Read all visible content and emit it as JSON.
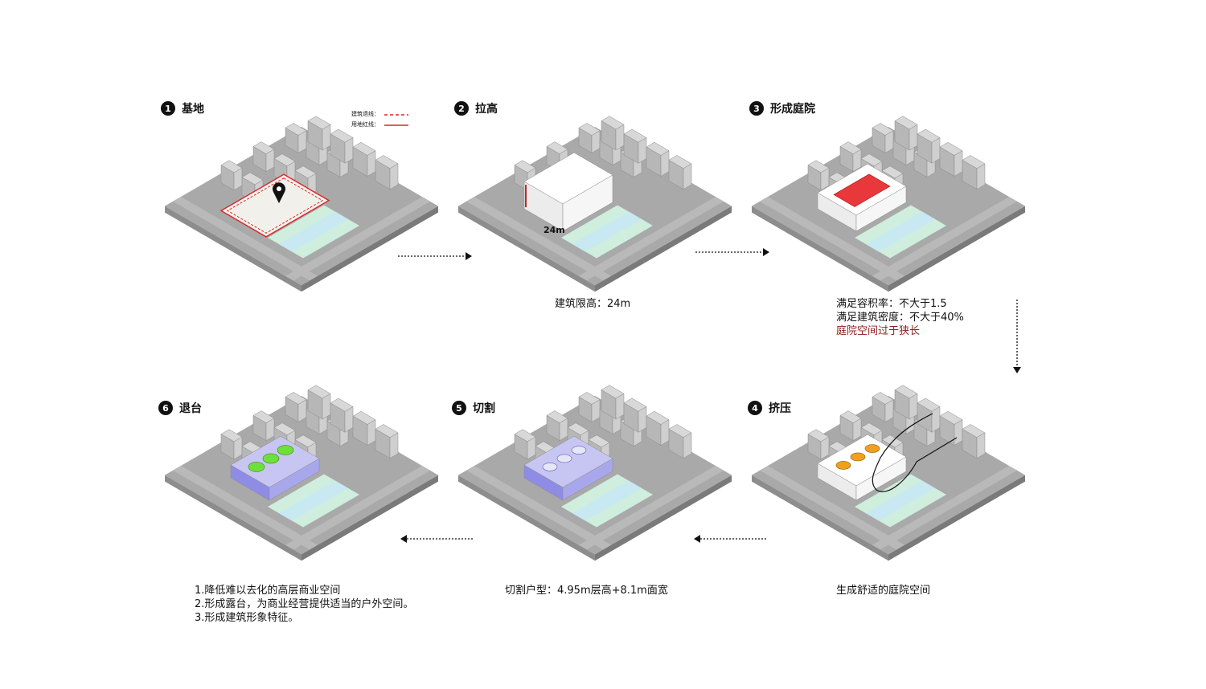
{
  "steps": [
    {
      "num": "1",
      "title": "基地"
    },
    {
      "num": "2",
      "title": "拉高"
    },
    {
      "num": "3",
      "title": "形成庭院"
    },
    {
      "num": "4",
      "title": "挤压"
    },
    {
      "num": "5",
      "title": "切割"
    },
    {
      "num": "6",
      "title": "退台"
    }
  ],
  "legend": {
    "setback": "建筑退线：",
    "redline": "用地红线："
  },
  "height_tag": "24m",
  "captions": {
    "step2": "建筑限高：24m",
    "step3_line1": "满足容积率：不大于1.5",
    "step3_line2": "满足建筑密度：不大于40%",
    "step3_line3": "庭院空间过于狭长",
    "step4": "生成舒适的庭院空间",
    "step5": "切割户型：4.95m层高+8.1m面宽",
    "step6_line1": "1.降低难以去化的高层商业空间",
    "step6_line2": "2.形成露台，为商业经营提供适当的户外空间。",
    "step6_line3": "3.形成建筑形象特征。"
  },
  "colors": {
    "ground": "#a9a9a9",
    "blocks": "#c8c8c8",
    "site": "#f2f0ea",
    "redline": "#d9262b",
    "river": "#cfeedd",
    "river_band": "#c8e8f2",
    "courtyard": "#e8383c",
    "terrace_green": "#6ee03a",
    "facade_purple": "#8f8ce6",
    "court_orange": "#f0a020"
  }
}
